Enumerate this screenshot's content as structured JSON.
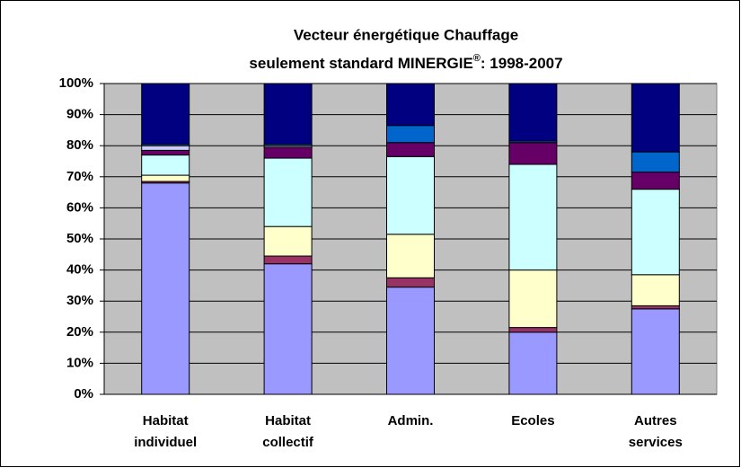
{
  "chart_data": {
    "type": "stacked_bar",
    "title": "Vecteur énergétique Chauffage",
    "subtitle": [
      "seulement standard MINERGIE",
      "®",
      ": 1998-2007"
    ],
    "categories": [
      [
        "Habitat",
        "individuel"
      ],
      [
        "Habitat",
        "collectif"
      ],
      [
        "Admin."
      ],
      [
        "Ecoles"
      ],
      [
        "Autres",
        "services"
      ]
    ],
    "series": [
      {
        "color": "#9999ff",
        "values": [
          68,
          42,
          34.5,
          20,
          27.5
        ]
      },
      {
        "color": "#993366",
        "values": [
          0.5,
          2.5,
          3,
          1.5,
          1
        ]
      },
      {
        "color": "#ffffcc",
        "values": [
          2,
          9.5,
          14,
          18.5,
          10
        ]
      },
      {
        "color": "#ccffff",
        "values": [
          6.5,
          22,
          25,
          34,
          27.5
        ]
      },
      {
        "color": "#660066",
        "values": [
          1.5,
          3.5,
          4.5,
          7,
          5.5
        ]
      },
      {
        "color": "#ccccff",
        "values": [
          1.5,
          0.5,
          0,
          0,
          0
        ]
      },
      {
        "color": "#0066cc",
        "values": [
          0.5,
          0.5,
          5.5,
          0.5,
          6.5
        ]
      },
      {
        "color": "#000080",
        "values": [
          19.5,
          19.5,
          13.5,
          18.5,
          22
        ]
      }
    ],
    "ylim": [
      0,
      100
    ],
    "yticks": [
      {
        "value": 0,
        "label": "0%"
      },
      {
        "value": 10,
        "label": "10%"
      },
      {
        "value": 20,
        "label": "20%"
      },
      {
        "value": 30,
        "label": "30%"
      },
      {
        "value": 40,
        "label": "40%"
      },
      {
        "value": 50,
        "label": "50%"
      },
      {
        "value": 60,
        "label": "60%"
      },
      {
        "value": 70,
        "label": "70%"
      },
      {
        "value": 80,
        "label": "80%"
      },
      {
        "value": 90,
        "label": "90%"
      },
      {
        "value": 100,
        "label": "100%"
      }
    ],
    "grid": true
  }
}
